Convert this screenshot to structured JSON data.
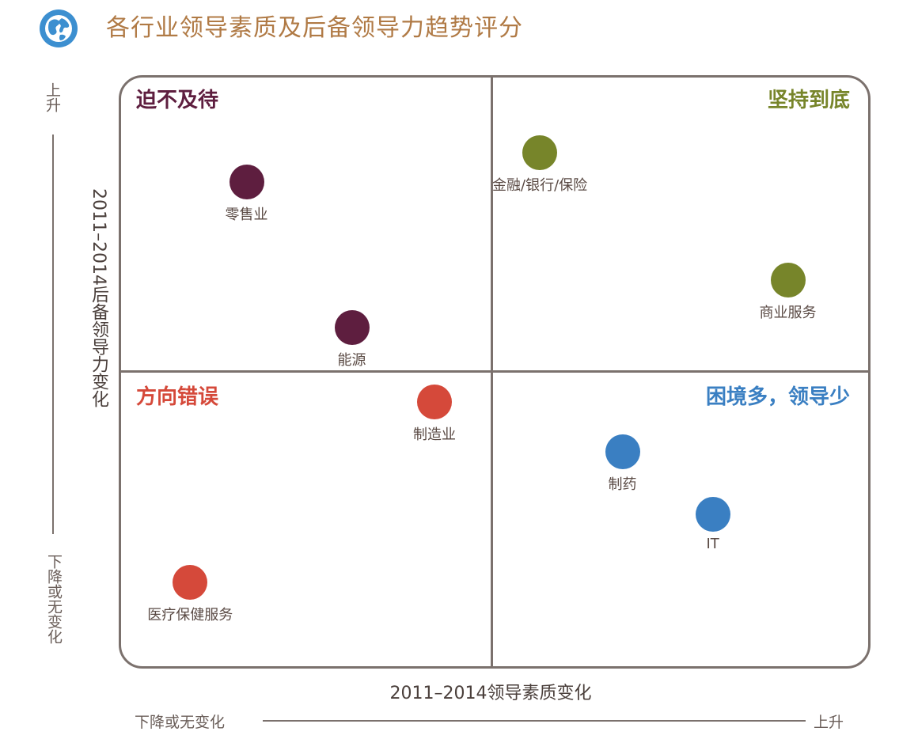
{
  "header": {
    "title": "各行业领导素质及后备领导力趋势评分",
    "icon": "globe-icon",
    "icon_color": "#3c8fd0"
  },
  "chart_data": {
    "type": "scatter",
    "title": "各行业领导素质及后备领导力趋势评分",
    "xlabel": "2011–2014领导素质变化",
    "ylabel": "2011–2014后备领导力变化",
    "x_low_label": "下降或无变化",
    "x_high_label": "上升",
    "y_low_label": "下降或无变化",
    "y_high_label": "上升",
    "xlim": [
      0,
      100
    ],
    "ylim": [
      0,
      100
    ],
    "quadrants": [
      {
        "label": "迫不及待",
        "position": "top-left",
        "color": "#5e1e3f"
      },
      {
        "label": "坚持到底",
        "position": "top-right",
        "color": "#77852a"
      },
      {
        "label": "方向错误",
        "position": "bottom-left",
        "color": "#d5493a"
      },
      {
        "label": "困境多，领导少",
        "position": "bottom-right",
        "color": "#3a7fc2"
      }
    ],
    "points": [
      {
        "label": "零售业",
        "x": 17,
        "y": 82,
        "color": "#5e1e3f"
      },
      {
        "label": "能源",
        "x": 31,
        "y": 57.5,
        "color": "#5e1e3f"
      },
      {
        "label": "金融/银行/保险",
        "x": 56,
        "y": 87,
        "color": "#77852a"
      },
      {
        "label": "商业服务",
        "x": 89,
        "y": 65.5,
        "color": "#77852a"
      },
      {
        "label": "制造业",
        "x": 42,
        "y": 45,
        "color": "#d5493a"
      },
      {
        "label": "医疗保健服务",
        "x": 9.5,
        "y": 14.5,
        "color": "#d5493a"
      },
      {
        "label": "制药",
        "x": 67,
        "y": 36.5,
        "color": "#3a7fc2"
      },
      {
        "label": "IT",
        "x": 79,
        "y": 26,
        "color": "#3a7fc2"
      }
    ],
    "grid": false,
    "legend": "none"
  }
}
